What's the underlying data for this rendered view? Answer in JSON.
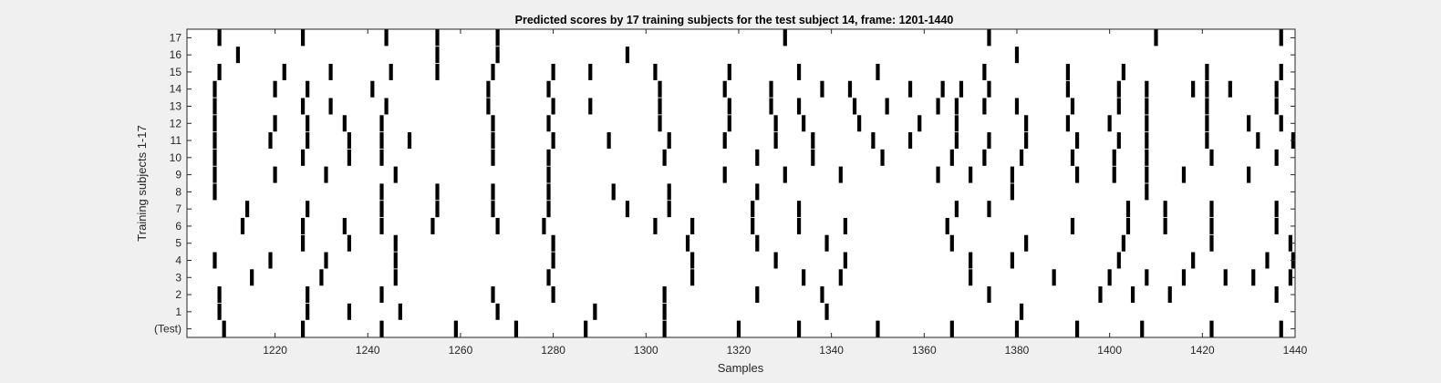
{
  "chart_data": {
    "type": "raster",
    "title": "Predicted scores by 17 training subjects for the test subject 14, frame: 1201-1440",
    "xlabel": "Samples",
    "ylabel": "Training subjects 1-17",
    "xlim": [
      1201,
      1440
    ],
    "xticks": [
      1220,
      1240,
      1260,
      1280,
      1300,
      1320,
      1340,
      1360,
      1380,
      1400,
      1420,
      1440
    ],
    "rows": [
      {
        "label": "(Test)",
        "x": [
          1209,
          1226,
          1243,
          1259,
          1272,
          1287,
          1304,
          1320,
          1333,
          1350,
          1366,
          1380,
          1393,
          1407,
          1422,
          1437
        ]
      },
      {
        "label": "1",
        "x": [
          1208,
          1227,
          1236,
          1247,
          1268,
          1289,
          1304,
          1339,
          1381
        ]
      },
      {
        "label": "2",
        "x": [
          1208,
          1227,
          1243,
          1267,
          1280,
          1304,
          1324,
          1338,
          1374,
          1398,
          1405,
          1413,
          1436
        ]
      },
      {
        "label": "3",
        "x": [
          1215,
          1230,
          1246,
          1279,
          1310,
          1334,
          1342,
          1370,
          1388,
          1400,
          1408,
          1416,
          1425,
          1431,
          1439
        ]
      },
      {
        "label": "4",
        "x": [
          1207,
          1219,
          1231,
          1246,
          1280,
          1310,
          1328,
          1343,
          1370,
          1379,
          1402,
          1418,
          1434,
          1440
        ]
      },
      {
        "label": "5",
        "x": [
          1226,
          1236,
          1246,
          1280,
          1309,
          1324,
          1339,
          1366,
          1382,
          1403,
          1422,
          1439
        ]
      },
      {
        "label": "6",
        "x": [
          1213,
          1226,
          1235,
          1243,
          1254,
          1268,
          1278,
          1302,
          1310,
          1323,
          1333,
          1343,
          1365,
          1392,
          1404,
          1412,
          1422,
          1436
        ]
      },
      {
        "label": "7",
        "x": [
          1214,
          1227,
          1243,
          1255,
          1267,
          1279,
          1296,
          1305,
          1323,
          1333,
          1367,
          1374,
          1404,
          1412,
          1422,
          1436
        ]
      },
      {
        "label": "8",
        "x": [
          1207,
          1243,
          1255,
          1267,
          1279,
          1293,
          1305,
          1324,
          1379,
          1408
        ]
      },
      {
        "label": "9",
        "x": [
          1207,
          1220,
          1231,
          1246,
          1279,
          1317,
          1330,
          1342,
          1363,
          1370,
          1379,
          1393,
          1401,
          1408,
          1416,
          1430
        ]
      },
      {
        "label": "10",
        "x": [
          1207,
          1226,
          1236,
          1243,
          1267,
          1279,
          1304,
          1324,
          1336,
          1351,
          1366,
          1373,
          1381,
          1392,
          1401,
          1408,
          1422,
          1436
        ]
      },
      {
        "label": "11",
        "x": [
          1207,
          1219,
          1227,
          1236,
          1243,
          1249,
          1267,
          1280,
          1292,
          1305,
          1317,
          1328,
          1336,
          1349,
          1357,
          1367,
          1374,
          1382,
          1393,
          1402,
          1408,
          1421,
          1432,
          1440
        ]
      },
      {
        "label": "12",
        "x": [
          1207,
          1220,
          1227,
          1235,
          1243,
          1267,
          1279,
          1303,
          1318,
          1328,
          1334,
          1346,
          1359,
          1367,
          1382,
          1391,
          1400,
          1408,
          1421,
          1430,
          1437
        ]
      },
      {
        "label": "13",
        "x": [
          1207,
          1226,
          1232,
          1244,
          1266,
          1280,
          1288,
          1303,
          1318,
          1327,
          1333,
          1345,
          1352,
          1363,
          1367,
          1373,
          1380,
          1392,
          1402,
          1408,
          1421,
          1436
        ]
      },
      {
        "label": "14",
        "x": [
          1207,
          1220,
          1227,
          1241,
          1266,
          1279,
          1303,
          1317,
          1327,
          1338,
          1344,
          1357,
          1364,
          1368,
          1374,
          1391,
          1402,
          1408,
          1418,
          1421,
          1426,
          1436
        ]
      },
      {
        "label": "15",
        "x": [
          1208,
          1222,
          1232,
          1245,
          1255,
          1267,
          1280,
          1288,
          1302,
          1318,
          1333,
          1350,
          1373,
          1391,
          1403,
          1421,
          1437
        ]
      },
      {
        "label": "16",
        "x": [
          1212,
          1255,
          1268,
          1296,
          1380
        ]
      },
      {
        "label": "17",
        "x": [
          1208,
          1226,
          1244,
          1255,
          1268,
          1330,
          1374,
          1410,
          1437
        ]
      }
    ],
    "bar_color": "#000000",
    "grid": false,
    "legend": "none"
  }
}
